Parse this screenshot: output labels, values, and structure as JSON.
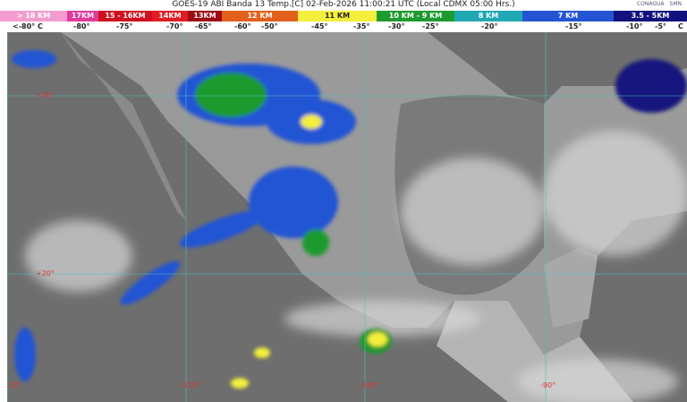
{
  "title": "GOES-19 ABI Banda 13 Temp.[C] 02-Feb-2026 11:00:21 UTC (Local CDMX  05:00 Hrs.)",
  "logos": [
    "CONAGUA",
    "SMN"
  ],
  "scale": [
    {
      "label": "> 18 KM",
      "color": "#f49ccf"
    },
    {
      "label": "17KM",
      "color": "#e23a9c"
    },
    {
      "label": "15 - 16KM",
      "color": "#d0101e"
    },
    {
      "label": "14KM",
      "color": "#e01c24"
    },
    {
      "label": "13KM",
      "color": "#9c0a14"
    },
    {
      "label": "12 KM",
      "color": "#e2601c"
    },
    {
      "label": "11 KM",
      "color": "#f4ee3c"
    },
    {
      "label": "10 KM - 9 KM",
      "color": "#1e9a2e"
    },
    {
      "label": "8 KM",
      "color": "#20a8b4"
    },
    {
      "label": "7 KM",
      "color": "#2454d4"
    },
    {
      "label": "3.5 - 5KM",
      "color": "#12127e"
    }
  ],
  "temps": [
    "<-80° C",
    "-80°",
    "-75°",
    "-70°",
    "-65°",
    "-60°",
    "-50°",
    "-45°",
    "-35°",
    "-30°",
    "-25°",
    "-20°",
    "-15°",
    "-10°",
    "-5°",
    "C"
  ],
  "grid": {
    "lat": [
      "+30°",
      "+20°"
    ],
    "lon": [
      "-120°",
      "-110°",
      "-100°",
      "-90°"
    ]
  }
}
